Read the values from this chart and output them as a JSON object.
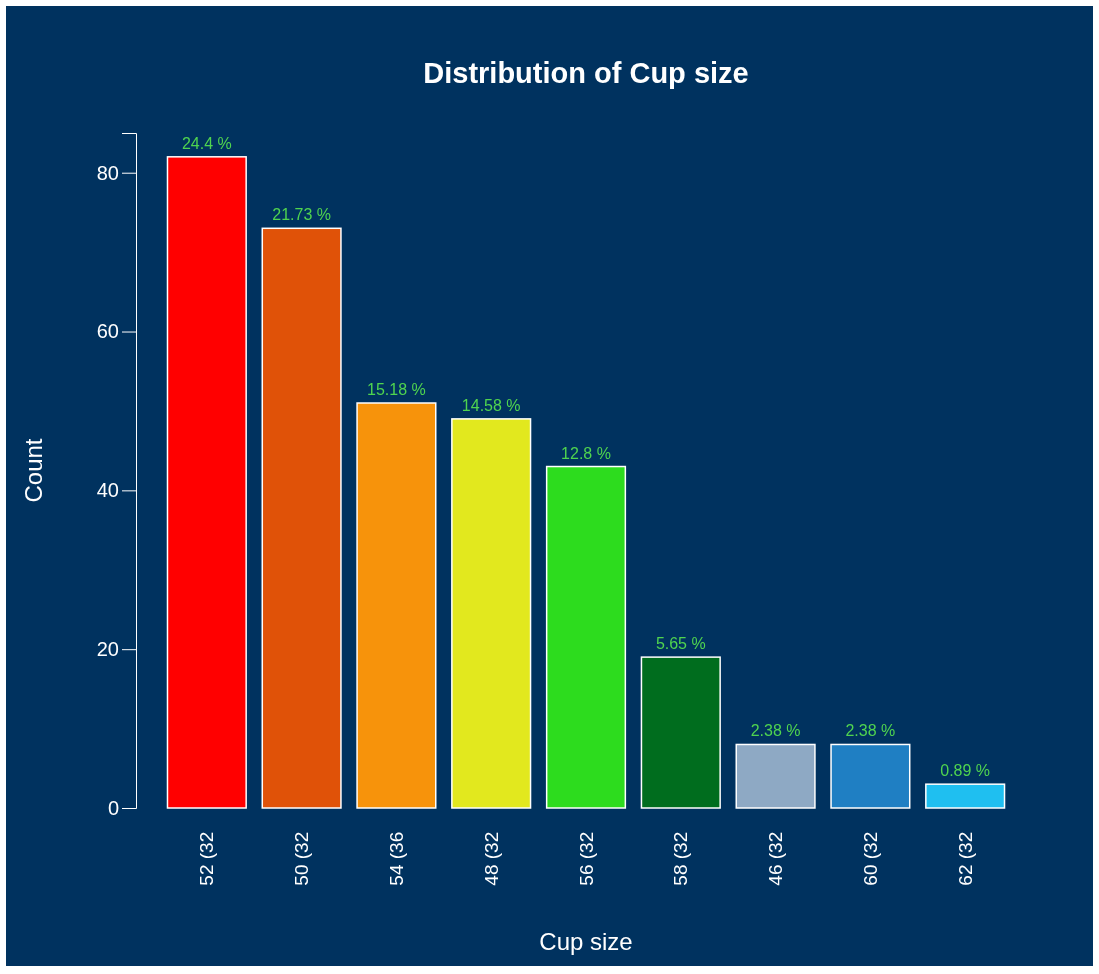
{
  "chart_data": {
    "type": "bar",
    "title": "Distribution of Cup size",
    "xlabel": "Cup size",
    "ylabel": "Count",
    "categories": [
      "52 (32",
      "50 (32",
      "54 (36",
      "48 (32",
      "56 (32",
      "58 (32",
      "46 (32",
      "60 (32",
      "62 (32"
    ],
    "values": [
      82,
      73,
      51,
      49,
      43,
      19,
      8,
      8,
      3
    ],
    "colors": [
      "#ff0000",
      "#e05208",
      "#f7930b",
      "#e2e81e",
      "#2ddc1e",
      "#006d1e",
      "#8ea9c4",
      "#1f7fc3",
      "#1fbff0"
    ],
    "annotations": [
      {
        "text": "24.4 %",
        "x": "52 (32",
        "y": 82
      },
      {
        "text": "21.73 %",
        "x": "50 (32",
        "y": 73
      },
      {
        "text": "15.18 %",
        "x": "54 (36",
        "y": 51
      },
      {
        "text": "14.58 %",
        "x": "48 (32",
        "y": 49
      },
      {
        "text": "12.8 %",
        "x": "56 (32",
        "y": 43
      },
      {
        "text": "5.65 %",
        "x": "58 (32",
        "y": 19
      },
      {
        "text": "2.38 %",
        "x": "46 (32",
        "y": 8
      },
      {
        "text": "2.38 %",
        "x": "60 (32",
        "y": 8
      },
      {
        "text": "0.89 %",
        "x": "62 (32",
        "y": 3
      }
    ],
    "ylim": [
      0,
      85
    ],
    "yticks": [
      0,
      20,
      40,
      60,
      80
    ],
    "grid": false
  }
}
